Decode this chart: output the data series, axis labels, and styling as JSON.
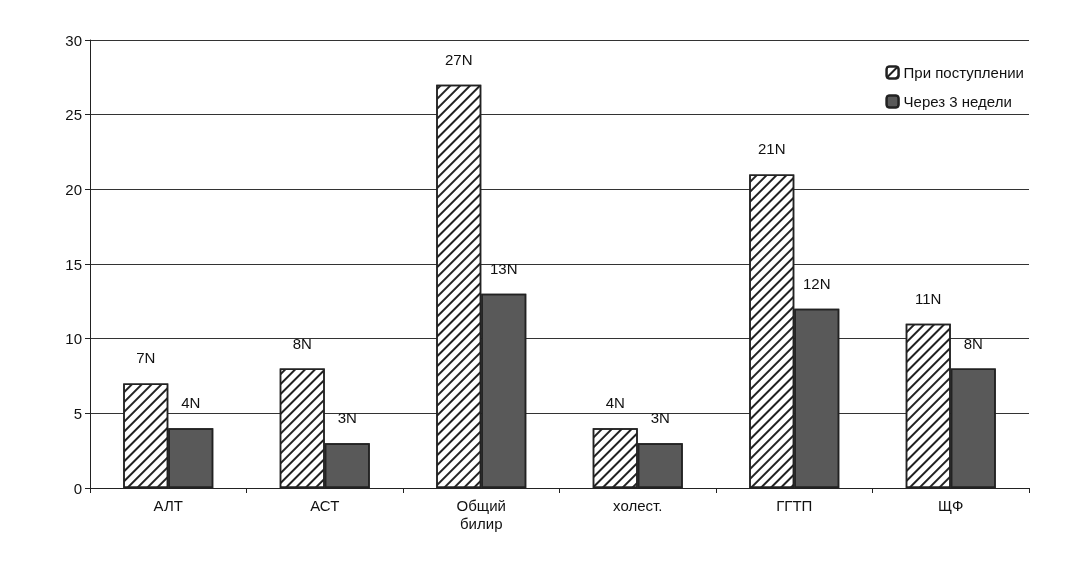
{
  "chart_data": {
    "type": "bar",
    "categories": [
      "АЛТ",
      "АСТ",
      "Общий билир",
      "холест.",
      "ГГТП",
      "ЩФ"
    ],
    "series": [
      {
        "name": "При поступлении",
        "color": "#ffffff",
        "values": [
          7,
          8,
          27,
          4,
          21,
          11
        ],
        "value_labels": [
          "7N",
          "8N",
          "27N",
          "4N",
          "21N",
          "11N"
        ]
      },
      {
        "name": "Через 3 недели",
        "color": "#595959",
        "values": [
          4,
          3,
          13,
          3,
          12,
          8
        ],
        "value_labels": [
          "4N",
          "3N",
          "13N",
          "3N",
          "12N",
          "8N"
        ]
      }
    ],
    "ylim": [
      0,
      30
    ],
    "yticks": [
      0,
      5,
      10,
      15,
      20,
      25,
      30
    ],
    "grid": "y",
    "legend": "top right"
  }
}
